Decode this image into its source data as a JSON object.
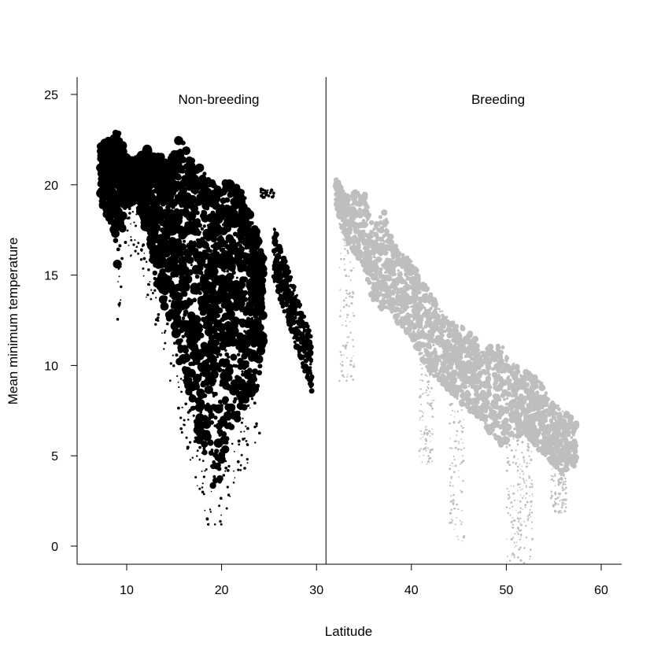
{
  "chart_data": {
    "type": "scatter",
    "xlabel": "Latitude",
    "ylabel": "Mean minimum temperature",
    "xlim": [
      5,
      62
    ],
    "ylim": [
      -1,
      26
    ],
    "x_ticks": [
      10,
      20,
      30,
      40,
      50,
      60
    ],
    "y_ticks": [
      0,
      5,
      10,
      15,
      20,
      25
    ],
    "x_tick_labels": [
      "10",
      "20",
      "30",
      "40",
      "50",
      "60"
    ],
    "y_tick_labels": [
      "0",
      "5",
      "10",
      "15",
      "20",
      "25"
    ],
    "panel_divider_x": 31,
    "grid": false,
    "legend": "none",
    "series": [
      {
        "name": "Non-breeding",
        "color": "#000000",
        "shape": "filled-circle",
        "x_range": [
          7,
          29.5
        ],
        "y_range": [
          1.2,
          23.3
        ],
        "samples": [
          {
            "x": 7.5,
            "y": 22.0
          },
          {
            "x": 8.0,
            "y": 21.0
          },
          {
            "x": 9.0,
            "y": 22.8
          },
          {
            "x": 9.0,
            "y": 16.0
          },
          {
            "x": 10.0,
            "y": 20.0
          },
          {
            "x": 12.0,
            "y": 22.0
          },
          {
            "x": 13.0,
            "y": 18.0
          },
          {
            "x": 14.0,
            "y": 20.0
          },
          {
            "x": 15.0,
            "y": 18.0
          },
          {
            "x": 15.5,
            "y": 22.8
          },
          {
            "x": 16.0,
            "y": 12.0
          },
          {
            "x": 17.0,
            "y": 20.0
          },
          {
            "x": 18.0,
            "y": 15.0
          },
          {
            "x": 18.0,
            "y": 6.0
          },
          {
            "x": 19.0,
            "y": 8.0
          },
          {
            "x": 19.3,
            "y": 2.0
          },
          {
            "x": 20.0,
            "y": 13.0
          },
          {
            "x": 21.0,
            "y": 17.0
          },
          {
            "x": 21.0,
            "y": 9.0
          },
          {
            "x": 22.0,
            "y": 18.0
          },
          {
            "x": 22.5,
            "y": 14.0
          },
          {
            "x": 23.0,
            "y": 10.0
          },
          {
            "x": 24.0,
            "y": 15.0
          },
          {
            "x": 24.5,
            "y": 19.5
          },
          {
            "x": 26.0,
            "y": 16.0
          },
          {
            "x": 27.0,
            "y": 13.0
          },
          {
            "x": 28.0,
            "y": 12.0
          },
          {
            "x": 29.0,
            "y": 10.0
          }
        ]
      },
      {
        "name": "Breeding",
        "color": "#bebebe",
        "shape": "filled-circle",
        "x_range": [
          32,
          57.5
        ],
        "y_range": [
          -1,
          21.2
        ],
        "samples": [
          {
            "x": 32.0,
            "y": 19.5
          },
          {
            "x": 33.0,
            "y": 18.0
          },
          {
            "x": 35.0,
            "y": 18.0
          },
          {
            "x": 36.0,
            "y": 15.0
          },
          {
            "x": 38.0,
            "y": 15.0
          },
          {
            "x": 40.0,
            "y": 12.0
          },
          {
            "x": 42.0,
            "y": 11.0
          },
          {
            "x": 42.0,
            "y": 6.0
          },
          {
            "x": 44.0,
            "y": 10.0
          },
          {
            "x": 45.0,
            "y": 3.0
          },
          {
            "x": 46.0,
            "y": 9.0
          },
          {
            "x": 48.0,
            "y": 9.0
          },
          {
            "x": 49.0,
            "y": 6.0
          },
          {
            "x": 50.0,
            "y": 9.5
          },
          {
            "x": 51.0,
            "y": 7.5
          },
          {
            "x": 51.5,
            "y": 1.0
          },
          {
            "x": 52.0,
            "y": 4.0
          },
          {
            "x": 53.0,
            "y": 8.0
          },
          {
            "x": 54.0,
            "y": 6.0
          },
          {
            "x": 55.0,
            "y": 6.5
          },
          {
            "x": 56.0,
            "y": 5.5
          },
          {
            "x": 57.0,
            "y": 6.0
          }
        ]
      }
    ]
  }
}
